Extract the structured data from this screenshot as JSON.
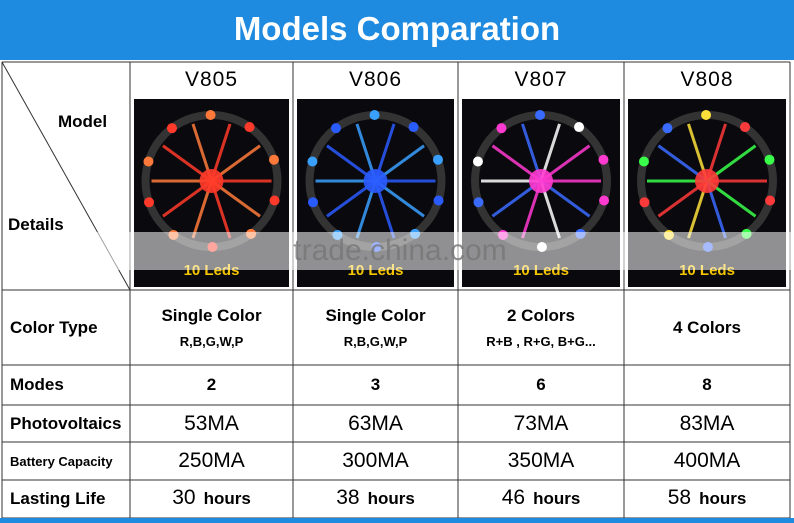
{
  "header": {
    "title": "Models Comparation"
  },
  "watermark": "trade.china.com",
  "table": {
    "corner": {
      "top": "Model",
      "bottom": "Details"
    },
    "models": [
      {
        "name": "V805",
        "image_label": "10 Leds"
      },
      {
        "name": "V806",
        "image_label": "10 Leds"
      },
      {
        "name": "V807",
        "image_label": "10 Leds"
      },
      {
        "name": "V808",
        "image_label": "10 Leds"
      }
    ],
    "rows": [
      {
        "label": "Color Type",
        "cells": [
          {
            "main": "Single Color",
            "sub": "R,B,G,W,P"
          },
          {
            "main": "Single Color",
            "sub": "R,B,G,W,P"
          },
          {
            "main": "2 Colors",
            "sub": "R+B , R+G, B+G..."
          },
          {
            "main": "4 Colors"
          }
        ]
      },
      {
        "label": "Modes",
        "cells": [
          "2",
          "3",
          "6",
          "8"
        ]
      },
      {
        "label": "Photovoltaics",
        "cells": [
          "53MA",
          "63MA",
          "73MA",
          "83MA"
        ]
      },
      {
        "label": "Battery Capacity",
        "cells": [
          "250MA",
          "300MA",
          "350MA",
          "400MA"
        ]
      },
      {
        "label": "Lasting Life",
        "cells": [
          {
            "value": "30",
            "unit": "hours"
          },
          {
            "value": "38",
            "unit": "hours"
          },
          {
            "value": "46",
            "unit": "hours"
          },
          {
            "value": "58",
            "unit": "hours"
          }
        ]
      }
    ]
  }
}
